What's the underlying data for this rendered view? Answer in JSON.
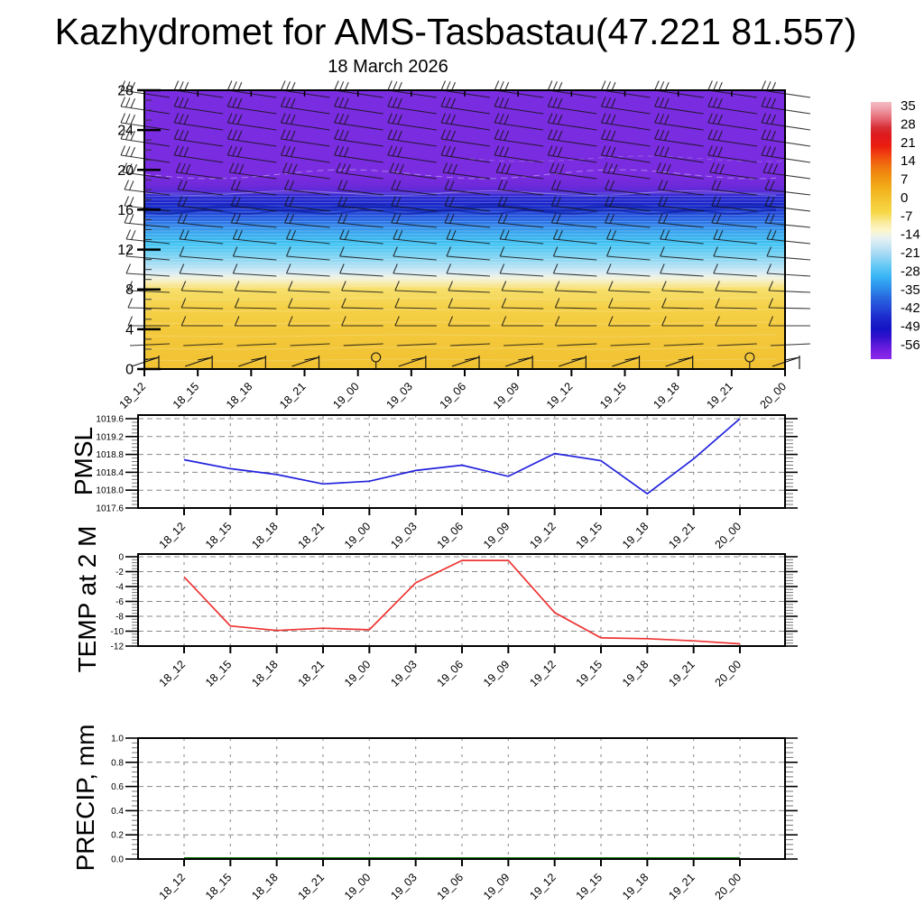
{
  "title": "Kazhydromet for AMS-Tasbastau(47.221 81.557)",
  "subtitle": "18 March 2026",
  "time_labels": [
    "18_12",
    "18_15",
    "18_18",
    "18_21",
    "19_00",
    "19_03",
    "19_06",
    "19_09",
    "19_12",
    "19_15",
    "19_18",
    "19_21",
    "20_00"
  ],
  "colors": {
    "pmsl_line": "#2222DD",
    "temp_line": "#EE3333",
    "precip_line": "#117711",
    "frame": "#000000",
    "grid_major": "#888888",
    "grid_vertical": "#999999",
    "barb": "#151515",
    "contour_white": "#FFFFFF",
    "navy_band": "#0A149B",
    "field_gradient": [
      [
        "0%",
        "#7A2CE0"
      ],
      [
        "30.7%",
        "#7A2CE0"
      ],
      [
        "34%",
        "#6F2ADA"
      ],
      [
        "36.2%",
        "#5B2BD8"
      ],
      [
        "38.2%",
        "#2B2BD2"
      ],
      [
        "41.4%",
        "#1626C8"
      ],
      [
        "44.7%",
        "#2350DC"
      ],
      [
        "47.9%",
        "#2E7CE6"
      ],
      [
        "51.1%",
        "#38A6EE"
      ],
      [
        "55%",
        "#3FC2F2"
      ],
      [
        "58.9%",
        "#72D0F2"
      ],
      [
        "62.8%",
        "#ACDFF3"
      ],
      [
        "65.4%",
        "#D5EAF5"
      ],
      [
        "67%",
        "#EDF2E2"
      ],
      [
        "68.6%",
        "#F8EFC0"
      ],
      [
        "71.2%",
        "#F7E06E"
      ],
      [
        "77.7%",
        "#F5D148"
      ],
      [
        "87.4%",
        "#F3C83A"
      ],
      [
        "100%",
        "#F1C232"
      ]
    ],
    "colorbar_gradient": [
      [
        "0%",
        "#F4BCC4"
      ],
      [
        "3%",
        "#EE9AA4"
      ],
      [
        "7%",
        "#E4606C"
      ],
      [
        "10%",
        "#D62E34"
      ],
      [
        "13%",
        "#DE1A1E"
      ],
      [
        "17%",
        "#EA1C10"
      ],
      [
        "21%",
        "#F04A10"
      ],
      [
        "25%",
        "#F07410"
      ],
      [
        "29%",
        "#F09210"
      ],
      [
        "33%",
        "#F2AC18"
      ],
      [
        "38%",
        "#F4C430"
      ],
      [
        "43%",
        "#F6D848"
      ],
      [
        "47%",
        "#FAECA0"
      ],
      [
        "50%",
        "#FCF6CC"
      ],
      [
        "53%",
        "#E6F1F2"
      ],
      [
        "56%",
        "#C6E6F4"
      ],
      [
        "60%",
        "#9AD6F4"
      ],
      [
        "64%",
        "#62C8F6"
      ],
      [
        "68%",
        "#38B4F4"
      ],
      [
        "72%",
        "#2E90EC"
      ],
      [
        "76%",
        "#2868E0"
      ],
      [
        "80%",
        "#2448D8"
      ],
      [
        "84%",
        "#1C28CC"
      ],
      [
        "88%",
        "#1414C4"
      ],
      [
        "91%",
        "#2E10CC"
      ],
      [
        "94%",
        "#5418D8"
      ],
      [
        "97%",
        "#7820E2"
      ],
      [
        "100%",
        "#8E2AEA"
      ]
    ]
  },
  "chart_data": [
    {
      "type": "heatmap",
      "name": "wind-temperature-time-height-section",
      "x_categories": [
        "18_12",
        "18_15",
        "18_18",
        "18_21",
        "19_00",
        "19_03",
        "19_06",
        "19_09",
        "19_12",
        "19_15",
        "19_18",
        "19_21",
        "20_00"
      ],
      "y_ticks": [
        "0",
        "4",
        "8",
        "12",
        "16",
        "20",
        "24",
        "28"
      ],
      "y_range": [
        0,
        28
      ],
      "colorbar_ticks": [
        "35",
        "28",
        "21",
        "14",
        "7",
        "0",
        "-7",
        "-14",
        "-21",
        "-28",
        "-35",
        "-42",
        "-49",
        "-56"
      ],
      "legend_position": "right",
      "description": "Temperature (shaded, deg C) with wind barbs vs height (0-28) and time; purple aloft (~-56), blue/cyan mid-levels, yellow (~-5) near surface",
      "wind_barbs": {
        "columns": 13,
        "station_offset": 28,
        "calm_columns": [
          4,
          11
        ],
        "rows": [
          {
            "y": 108,
            "n": 3,
            "rise": 8,
            "len": 54
          },
          {
            "y": 126,
            "n": 3,
            "rise": 8,
            "len": 54
          },
          {
            "y": 144,
            "n": 3,
            "rise": 8,
            "len": 54
          },
          {
            "y": 162,
            "n": 3,
            "rise": 8,
            "len": 54
          },
          {
            "y": 180,
            "n": 3,
            "rise": 8,
            "len": 54
          },
          {
            "y": 198,
            "n": 3,
            "rise": 7,
            "len": 52
          },
          {
            "y": 216,
            "n": 2,
            "rise": 6,
            "len": 50
          },
          {
            "y": 234,
            "n": 2,
            "rise": 6,
            "len": 50
          },
          {
            "y": 252,
            "n": 2,
            "rise": 5,
            "len": 50
          },
          {
            "y": 270,
            "n": 2,
            "rise": 5,
            "len": 48
          },
          {
            "y": 288,
            "n": 1,
            "rise": 4,
            "len": 48
          },
          {
            "y": 306,
            "n": 1,
            "rise": 3,
            "len": 48
          },
          {
            "y": 324,
            "n": 1,
            "rise": 2,
            "len": 46
          },
          {
            "y": 342,
            "n": 1,
            "rise": 1,
            "len": 46
          },
          {
            "y": 361,
            "n": 1,
            "rise": 0,
            "len": 46
          },
          {
            "y": 381,
            "n": 0,
            "rise": -2,
            "len": 44
          }
        ]
      }
    },
    {
      "type": "line",
      "name": "PMSL",
      "x": [
        "18_12",
        "18_15",
        "18_18",
        "18_21",
        "19_00",
        "19_03",
        "19_06",
        "19_09",
        "19_12",
        "19_15",
        "19_18",
        "19_21",
        "20_00"
      ],
      "values": [
        1018.68,
        1018.48,
        1018.35,
        1018.14,
        1018.2,
        1018.44,
        1018.56,
        1018.31,
        1018.82,
        1018.66,
        1017.92,
        1018.7,
        1019.6
      ],
      "y_ticks": [
        "1019.6",
        "1019.2",
        "1018.8",
        "1018.4",
        "1018.0",
        "1017.6"
      ],
      "ylim": [
        1017.6,
        1019.6
      ],
      "grid": true
    },
    {
      "type": "line",
      "name": "TEMP at 2 M",
      "x": [
        "18_12",
        "18_15",
        "18_18",
        "18_21",
        "19_00",
        "19_03",
        "19_06",
        "19_09",
        "19_12",
        "19_15",
        "19_18",
        "19_21",
        "20_00"
      ],
      "values": [
        -2.7,
        -9.3,
        -9.9,
        -9.6,
        -9.8,
        -3.5,
        -0.5,
        -0.5,
        -7.5,
        -10.9,
        -11.0,
        -11.3,
        -11.7
      ],
      "y_ticks": [
        "0",
        "-2",
        "-4",
        "-6",
        "-8",
        "-10",
        "-12"
      ],
      "ylim": [
        -12,
        0
      ],
      "grid": true
    },
    {
      "type": "line",
      "name": "PRECIP, mm",
      "x": [
        "18_12",
        "18_15",
        "18_18",
        "18_21",
        "19_00",
        "19_03",
        "19_06",
        "19_09",
        "19_12",
        "19_15",
        "19_18",
        "19_21",
        "20_00"
      ],
      "values": [
        0.0,
        0.0,
        0.0,
        0.0,
        0.0,
        0.0,
        0.0,
        0.0,
        0.0,
        0.0,
        0.0,
        0.0,
        0.0
      ],
      "y_ticks": [
        "1.0",
        "0.8",
        "0.6",
        "0.4",
        "0.2",
        "0.0"
      ],
      "ylim": [
        0.0,
        1.0
      ],
      "grid": true
    }
  ]
}
